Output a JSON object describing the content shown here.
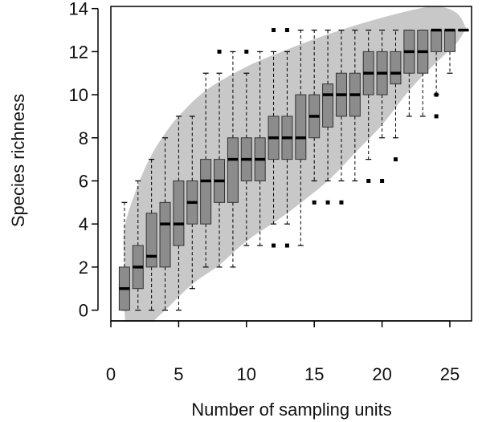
{
  "chart_data": {
    "type": "box",
    "title": "",
    "xlabel": "Number of sampling units",
    "ylabel": "Species richness",
    "xlim": [
      0,
      26.6
    ],
    "ylim": [
      -0.5,
      14.1
    ],
    "xticks": [
      0,
      5,
      10,
      15,
      20,
      25
    ],
    "yticks": [
      0,
      2,
      4,
      6,
      8,
      10,
      12,
      14
    ],
    "grid": false,
    "legend": "none",
    "colors": {
      "box_fill": "#8c8c8c",
      "envelope_fill": "#c8c8c8",
      "median": "#000000",
      "whisker": "#000000",
      "outlier": "#000000"
    },
    "envelope": {
      "upper": [
        [
          1,
          3.8
        ],
        [
          2,
          5.8
        ],
        [
          3,
          7.2
        ],
        [
          4,
          8.2
        ],
        [
          5,
          9.0
        ],
        [
          7,
          10.2
        ],
        [
          10,
          11.3
        ],
        [
          13,
          12.1
        ],
        [
          16,
          12.8
        ],
        [
          19,
          13.4
        ],
        [
          22,
          13.9
        ],
        [
          24,
          14.1
        ],
        [
          25.5,
          13.8
        ],
        [
          26.2,
          13.1
        ]
      ],
      "lower": [
        [
          26.2,
          13.1
        ],
        [
          25.5,
          12.4
        ],
        [
          24,
          11.5
        ],
        [
          22,
          10.2
        ],
        [
          20,
          8.6
        ],
        [
          18,
          7.3
        ],
        [
          16,
          6.0
        ],
        [
          13,
          4.5
        ],
        [
          10,
          3.2
        ],
        [
          8,
          2.1
        ],
        [
          6,
          1.2
        ],
        [
          4,
          0.0
        ],
        [
          2.5,
          -0.8
        ],
        [
          1.3,
          -0.8
        ],
        [
          1,
          0.0
        ],
        [
          1,
          2.0
        ]
      ]
    },
    "boxes": [
      {
        "x": 1,
        "q1": 0,
        "median": 1,
        "q3": 2,
        "whisker_low": 0,
        "whisker_high": 5,
        "outliers": []
      },
      {
        "x": 2,
        "q1": 1,
        "median": 2,
        "q3": 3,
        "whisker_low": 0,
        "whisker_high": 6,
        "outliers": []
      },
      {
        "x": 3,
        "q1": 2,
        "median": 2.5,
        "q3": 4.5,
        "whisker_low": 0,
        "whisker_high": 7,
        "outliers": []
      },
      {
        "x": 4,
        "q1": 2,
        "median": 4,
        "q3": 5,
        "whisker_low": 0,
        "whisker_high": 8,
        "outliers": []
      },
      {
        "x": 5,
        "q1": 3,
        "median": 4,
        "q3": 6,
        "whisker_low": 0,
        "whisker_high": 9,
        "outliers": []
      },
      {
        "x": 6,
        "q1": 4,
        "median": 5,
        "q3": 6,
        "whisker_low": 1,
        "whisker_high": 9,
        "outliers": []
      },
      {
        "x": 7,
        "q1": 4,
        "median": 6,
        "q3": 7,
        "whisker_low": 2,
        "whisker_high": 11,
        "outliers": []
      },
      {
        "x": 8,
        "q1": 5,
        "median": 6,
        "q3": 7,
        "whisker_low": 2,
        "whisker_high": 11,
        "outliers": [
          12
        ]
      },
      {
        "x": 9,
        "q1": 5,
        "median": 7,
        "q3": 8,
        "whisker_low": 2,
        "whisker_high": 12,
        "outliers": []
      },
      {
        "x": 10,
        "q1": 6,
        "median": 7,
        "q3": 8,
        "whisker_low": 3,
        "whisker_high": 11,
        "outliers": [
          12
        ]
      },
      {
        "x": 11,
        "q1": 6,
        "median": 7,
        "q3": 8,
        "whisker_low": 3,
        "whisker_high": 12,
        "outliers": []
      },
      {
        "x": 12,
        "q1": 7,
        "median": 8,
        "q3": 9,
        "whisker_low": 4,
        "whisker_high": 12,
        "outliers": [
          3,
          13
        ]
      },
      {
        "x": 13,
        "q1": 7,
        "median": 8,
        "q3": 9,
        "whisker_low": 4,
        "whisker_high": 12,
        "outliers": [
          3,
          13
        ]
      },
      {
        "x": 14,
        "q1": 7,
        "median": 8,
        "q3": 10,
        "whisker_low": 3,
        "whisker_high": 13,
        "outliers": []
      },
      {
        "x": 15,
        "q1": 8,
        "median": 9,
        "q3": 10,
        "whisker_low": 6,
        "whisker_high": 13,
        "outliers": [
          5
        ]
      },
      {
        "x": 16,
        "q1": 8.5,
        "median": 10,
        "q3": 10.5,
        "whisker_low": 6,
        "whisker_high": 13,
        "outliers": [
          5
        ]
      },
      {
        "x": 17,
        "q1": 9,
        "median": 10,
        "q3": 11,
        "whisker_low": 6,
        "whisker_high": 13,
        "outliers": [
          5
        ]
      },
      {
        "x": 18,
        "q1": 9,
        "median": 10,
        "q3": 11,
        "whisker_low": 6,
        "whisker_high": 13,
        "outliers": []
      },
      {
        "x": 19,
        "q1": 10,
        "median": 11,
        "q3": 12,
        "whisker_low": 7,
        "whisker_high": 13,
        "outliers": [
          6
        ]
      },
      {
        "x": 20,
        "q1": 10,
        "median": 11,
        "q3": 12,
        "whisker_low": 8,
        "whisker_high": 13,
        "outliers": [
          6
        ]
      },
      {
        "x": 21,
        "q1": 10.5,
        "median": 11,
        "q3": 12,
        "whisker_low": 8,
        "whisker_high": 13,
        "outliers": [
          7
        ]
      },
      {
        "x": 22,
        "q1": 11,
        "median": 12,
        "q3": 13,
        "whisker_low": 9,
        "whisker_high": 13,
        "outliers": []
      },
      {
        "x": 23,
        "q1": 11,
        "median": 12,
        "q3": 13,
        "whisker_low": 9,
        "whisker_high": 13,
        "outliers": []
      },
      {
        "x": 24,
        "q1": 12,
        "median": 13,
        "q3": 13,
        "whisker_low": 10,
        "whisker_high": 13,
        "outliers": [
          9,
          10
        ]
      },
      {
        "x": 25,
        "q1": 12,
        "median": 13,
        "q3": 13,
        "whisker_low": 11,
        "whisker_high": 13,
        "outliers": []
      },
      {
        "x": 26,
        "q1": 13,
        "median": 13,
        "q3": 13,
        "whisker_low": 13,
        "whisker_high": 13,
        "outliers": []
      }
    ]
  }
}
